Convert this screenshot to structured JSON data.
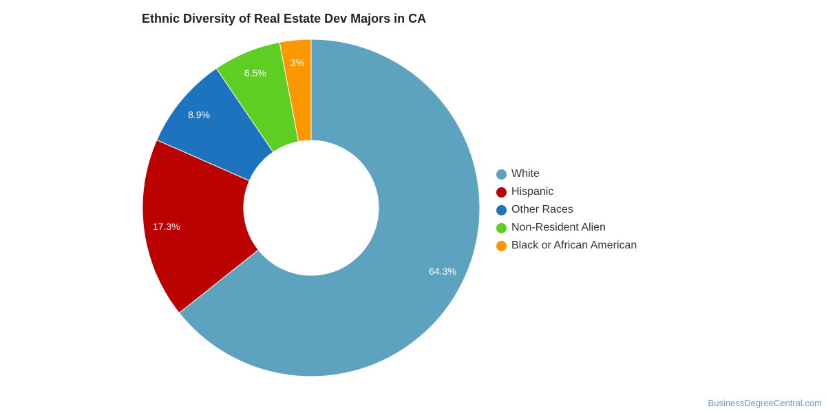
{
  "chart_data": {
    "type": "pie",
    "title": "Ethnic Diversity of Real Estate Dev Majors in CA",
    "donut": true,
    "legend_position": "right",
    "slices": [
      {
        "label": "White",
        "value": 64.3,
        "value_label": "64.3%",
        "color": "#5da2bf"
      },
      {
        "label": "Hispanic",
        "value": 17.3,
        "value_label": "17.3%",
        "color": "#bb0000"
      },
      {
        "label": "Other Races",
        "value": 8.9,
        "value_label": "8.9%",
        "color": "#1e73be"
      },
      {
        "label": "Non-Resident Alien",
        "value": 6.5,
        "value_label": "6.5%",
        "color": "#5fce23"
      },
      {
        "label": "Black or African American",
        "value": 3,
        "value_label": "3%",
        "color": "#fb9700"
      }
    ]
  },
  "footer": {
    "source": "BusinessDegreeCentral.com"
  }
}
